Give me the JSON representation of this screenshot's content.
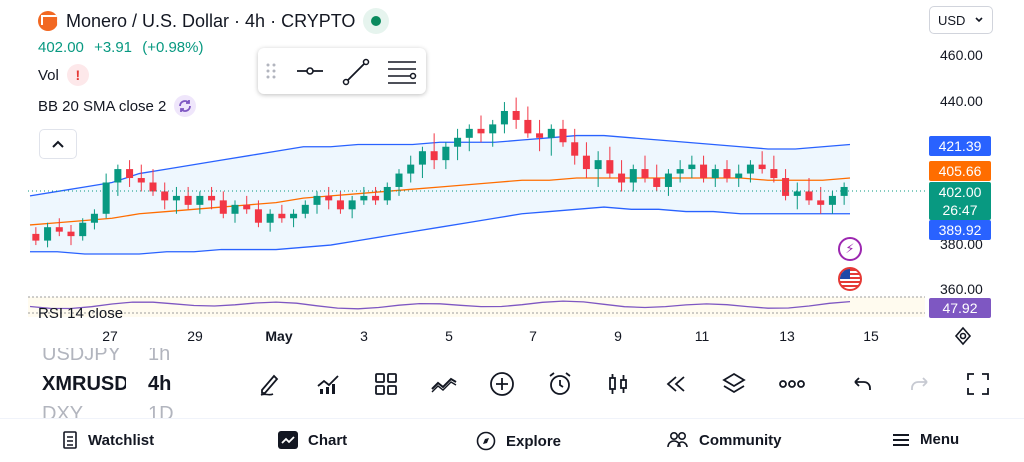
{
  "header": {
    "title": "Monero / U.S. Dollar · 4h · CRYPTO",
    "price": "402.00",
    "change": "+3.91",
    "change_pct": "(+0.98%)",
    "currency": "USD",
    "logo_icon": "monero-logo-icon",
    "live_icon": "market-open-dot-icon"
  },
  "indicators": [
    {
      "label": "Vol",
      "badge_icon": "alert-icon",
      "badge_text": "!"
    },
    {
      "label": "BB 20 SMA close 2",
      "badge_icon": "refresh-icon"
    }
  ],
  "rsi": {
    "label": "RSI 14 close",
    "value": "47.92"
  },
  "price_axis": {
    "labels": [
      "460.00",
      "440.00",
      "380.00",
      "360.00"
    ],
    "tags": {
      "upper": "421.39",
      "basis": "405.66",
      "last": "402.00",
      "countdown": "26:47",
      "lower": "389.92"
    }
  },
  "time_axis": {
    "labels": [
      "27",
      "29",
      "May",
      "3",
      "5",
      "7",
      "9",
      "11",
      "13",
      "15"
    ]
  },
  "symbols": [
    {
      "symbol": "USDJPY",
      "interval": "1h"
    },
    {
      "symbol": "XMRUSD",
      "interval": "4h"
    },
    {
      "symbol": "DXY",
      "interval": "1D"
    }
  ],
  "drawing_toolbar": [
    "drag-handle-icon",
    "horizontal-line-icon",
    "trend-line-icon",
    "fib-lines-icon"
  ],
  "toolbar": [
    "pencil-icon",
    "indicators-icon",
    "layout-grid-icon",
    "compare-icon",
    "add-icon",
    "alarm-icon",
    "candles-icon",
    "replay-icon",
    "layers-icon",
    "more-icon",
    "undo-icon",
    "redo-icon",
    "fullscreen-icon"
  ],
  "nav": [
    {
      "label": "Watchlist",
      "icon": "watchlist-icon"
    },
    {
      "label": "Chart",
      "icon": "chart-icon"
    },
    {
      "label": "Explore",
      "icon": "compass-icon"
    },
    {
      "label": "Community",
      "icon": "community-icon"
    },
    {
      "label": "Menu",
      "icon": "menu-icon"
    }
  ],
  "colors": {
    "up": "#089981",
    "down": "#f23645",
    "band": "#2962ff",
    "basis": "#ff6d00",
    "rsi": "#7e57c2"
  },
  "chart_data": {
    "type": "candlestick",
    "series_note": "",
    "candles": [
      [
        381,
        384,
        376,
        378
      ],
      [
        378,
        386,
        375,
        384
      ],
      [
        384,
        388,
        380,
        382
      ],
      [
        382,
        385,
        376,
        380
      ],
      [
        380,
        388,
        378,
        386
      ],
      [
        386,
        392,
        383,
        390
      ],
      [
        390,
        408,
        388,
        404
      ],
      [
        404,
        412,
        398,
        410
      ],
      [
        410,
        414,
        402,
        406
      ],
      [
        406,
        412,
        400,
        404
      ],
      [
        404,
        410,
        398,
        400
      ],
      [
        400,
        404,
        392,
        396
      ],
      [
        396,
        402,
        390,
        398
      ],
      [
        398,
        402,
        392,
        394
      ],
      [
        394,
        400,
        390,
        398
      ],
      [
        398,
        402,
        392,
        396
      ],
      [
        396,
        400,
        388,
        390
      ],
      [
        390,
        396,
        386,
        394
      ],
      [
        394,
        398,
        390,
        392
      ],
      [
        392,
        396,
        384,
        386
      ],
      [
        386,
        392,
        382,
        390
      ],
      [
        390,
        394,
        386,
        388
      ],
      [
        388,
        392,
        384,
        390
      ],
      [
        390,
        396,
        388,
        394
      ],
      [
        394,
        400,
        390,
        398
      ],
      [
        398,
        402,
        392,
        396
      ],
      [
        396,
        400,
        390,
        392
      ],
      [
        392,
        398,
        388,
        396
      ],
      [
        396,
        402,
        394,
        398
      ],
      [
        398,
        402,
        394,
        396
      ],
      [
        396,
        404,
        394,
        402
      ],
      [
        402,
        410,
        398,
        408
      ],
      [
        408,
        416,
        404,
        412
      ],
      [
        412,
        420,
        406,
        418
      ],
      [
        418,
        426,
        410,
        414
      ],
      [
        414,
        422,
        410,
        420
      ],
      [
        420,
        428,
        414,
        424
      ],
      [
        424,
        430,
        418,
        428
      ],
      [
        428,
        434,
        422,
        426
      ],
      [
        426,
        432,
        420,
        430
      ],
      [
        430,
        440,
        426,
        436
      ],
      [
        436,
        442,
        428,
        432
      ],
      [
        432,
        438,
        424,
        426
      ],
      [
        426,
        432,
        418,
        424
      ],
      [
        424,
        430,
        416,
        428
      ],
      [
        428,
        432,
        420,
        422
      ],
      [
        422,
        428,
        412,
        416
      ],
      [
        416,
        422,
        406,
        410
      ],
      [
        410,
        418,
        402,
        414
      ],
      [
        414,
        420,
        406,
        408
      ],
      [
        408,
        414,
        400,
        404
      ],
      [
        404,
        412,
        400,
        410
      ],
      [
        410,
        416,
        404,
        406
      ],
      [
        406,
        412,
        400,
        402
      ],
      [
        402,
        410,
        398,
        408
      ],
      [
        408,
        414,
        404,
        410
      ],
      [
        410,
        416,
        406,
        412
      ],
      [
        412,
        416,
        404,
        406
      ],
      [
        406,
        412,
        402,
        410
      ],
      [
        410,
        414,
        404,
        406
      ],
      [
        406,
        412,
        402,
        408
      ],
      [
        408,
        414,
        404,
        412
      ],
      [
        412,
        418,
        408,
        410
      ],
      [
        410,
        416,
        404,
        406
      ],
      [
        406,
        410,
        396,
        398
      ],
      [
        398,
        404,
        392,
        400
      ],
      [
        400,
        406,
        394,
        396
      ],
      [
        396,
        402,
        390,
        394
      ],
      [
        394,
        400,
        390,
        398
      ],
      [
        398,
        404,
        394,
        402
      ]
    ],
    "bb_upper": [
      398,
      400,
      402,
      404,
      408,
      410,
      412,
      414,
      416,
      418,
      420,
      420,
      421,
      421,
      421,
      422,
      422,
      422,
      423,
      424,
      425,
      425,
      424,
      423,
      422,
      421,
      420,
      419,
      419,
      420,
      421
    ],
    "bb_lower": [
      373,
      373,
      372,
      372,
      372,
      373,
      373,
      374,
      374,
      374,
      375,
      376,
      378,
      380,
      382,
      384,
      386,
      388,
      390,
      391,
      392,
      393,
      392,
      392,
      391,
      391,
      390,
      390,
      390,
      390,
      390
    ],
    "bb_basis": [
      385,
      386,
      387,
      388,
      390,
      391,
      392,
      393,
      394,
      395,
      397,
      398,
      399,
      400,
      401,
      402,
      403,
      404,
      405,
      405,
      406,
      406,
      406,
      406,
      406,
      406,
      406,
      405,
      405,
      405,
      406
    ],
    "ylim": [
      355,
      470
    ],
    "last_price": 402.0
  }
}
